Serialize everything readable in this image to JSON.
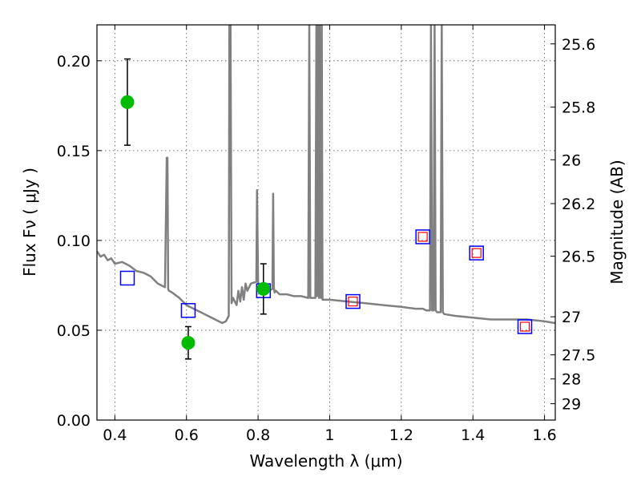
{
  "chart_data": {
    "type": "line",
    "xlabel": "Wavelength  λ (μm)",
    "ylabel": "Flux  Fν  ( μJy )",
    "ylabel_right": "Magnitude (AB)",
    "xlim": [
      0.35,
      1.63
    ],
    "ylim": [
      0.0,
      0.22
    ],
    "grid": true,
    "x_ticks": [
      0.4,
      0.6,
      0.8,
      1.0,
      1.2,
      1.4,
      1.6
    ],
    "x_tick_labels": [
      "0.4",
      "0.6",
      "0.8",
      "1",
      "1.2",
      "1.4",
      "1.6"
    ],
    "y_ticks": [
      0.0,
      0.05,
      0.1,
      0.15,
      0.2
    ],
    "y_tick_labels": [
      "0.00",
      "0.05",
      "0.10",
      "0.15",
      "0.20"
    ],
    "right_ticks": [
      {
        "label": "25.6",
        "flux": 0.2094
      },
      {
        "label": "25.8",
        "flux": 0.1742
      },
      {
        "label": "26",
        "flux": 0.1449
      },
      {
        "label": "26.2",
        "flux": 0.1205
      },
      {
        "label": "26.5",
        "flux": 0.0912
      },
      {
        "label": "27",
        "flux": 0.0575
      },
      {
        "label": "27.5",
        "flux": 0.0363
      },
      {
        "label": "28",
        "flux": 0.0229
      },
      {
        "label": "29",
        "flux": 0.0091
      }
    ],
    "series": [
      {
        "kind": "model_spectrum",
        "color": "#808080",
        "x": [
          0.35,
          0.36,
          0.37,
          0.38,
          0.39,
          0.4,
          0.42,
          0.44,
          0.46,
          0.48,
          0.5,
          0.52,
          0.54,
          0.545,
          0.547,
          0.549,
          0.551,
          0.56,
          0.58,
          0.6,
          0.62,
          0.64,
          0.66,
          0.68,
          0.7,
          0.71,
          0.718,
          0.72,
          0.723,
          0.726,
          0.73,
          0.74,
          0.745,
          0.75,
          0.755,
          0.76,
          0.765,
          0.77,
          0.78,
          0.795,
          0.797,
          0.8,
          0.803,
          0.81,
          0.82,
          0.83,
          0.84,
          0.842,
          0.844,
          0.846,
          0.85,
          0.86,
          0.88,
          0.9,
          0.92,
          0.94,
          0.943,
          0.946,
          0.95,
          0.96,
          0.963,
          0.965,
          0.968,
          0.97,
          0.972,
          0.975,
          0.978,
          0.98,
          1.0,
          1.05,
          1.1,
          1.15,
          1.2,
          1.24,
          1.26,
          1.27,
          1.28,
          1.283,
          1.286,
          1.29,
          1.293,
          1.296,
          1.3,
          1.31,
          1.313,
          1.316,
          1.32,
          1.35,
          1.4,
          1.45,
          1.5,
          1.55,
          1.6,
          1.63
        ],
        "y": [
          0.094,
          0.091,
          0.092,
          0.089,
          0.09,
          0.087,
          0.088,
          0.086,
          0.083,
          0.082,
          0.08,
          0.076,
          0.074,
          0.146,
          0.146,
          0.073,
          0.072,
          0.071,
          0.068,
          0.064,
          0.062,
          0.06,
          0.058,
          0.056,
          0.054,
          0.055,
          0.058,
          0.22,
          0.22,
          0.065,
          0.068,
          0.064,
          0.072,
          0.066,
          0.074,
          0.067,
          0.076,
          0.072,
          0.076,
          0.077,
          0.128,
          0.077,
          0.075,
          0.074,
          0.073,
          0.072,
          0.073,
          0.126,
          0.074,
          0.071,
          0.072,
          0.07,
          0.07,
          0.069,
          0.069,
          0.068,
          0.22,
          0.068,
          0.068,
          0.068,
          0.22,
          0.069,
          0.22,
          0.068,
          0.22,
          0.068,
          0.22,
          0.067,
          0.067,
          0.066,
          0.065,
          0.064,
          0.063,
          0.062,
          0.062,
          0.061,
          0.061,
          0.22,
          0.061,
          0.061,
          0.22,
          0.061,
          0.06,
          0.06,
          0.22,
          0.06,
          0.059,
          0.058,
          0.057,
          0.056,
          0.056,
          0.056,
          0.055,
          0.054
        ]
      },
      {
        "kind": "observed_points",
        "color": "#00bb00",
        "x": [
          0.435,
          0.605,
          0.815
        ],
        "y": [
          0.177,
          0.043,
          0.073
        ],
        "yerr_low": [
          0.153,
          0.034,
          0.059
        ],
        "yerr_high": [
          0.201,
          0.052,
          0.087
        ]
      },
      {
        "kind": "model_photometry",
        "color": "#0000ff",
        "x": [
          0.435,
          0.605,
          0.815,
          1.065,
          1.26,
          1.41,
          1.545
        ],
        "y": [
          0.079,
          0.061,
          0.072,
          0.066,
          0.102,
          0.093,
          0.052
        ]
      },
      {
        "kind": "model_photometry_inner",
        "color": "#ff0000",
        "x": [
          1.065,
          1.26,
          1.41,
          1.545
        ],
        "y": [
          0.066,
          0.102,
          0.093,
          0.052
        ]
      }
    ]
  }
}
